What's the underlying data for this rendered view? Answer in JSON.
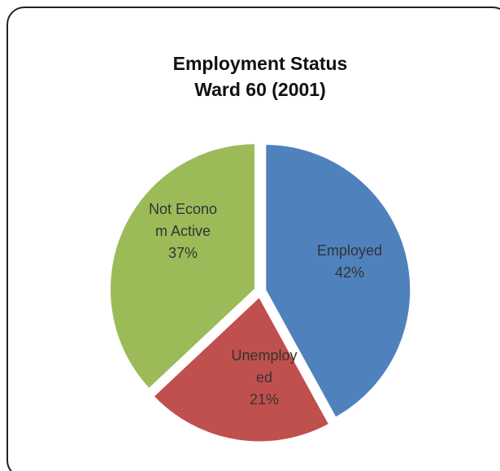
{
  "chart_data": {
    "type": "pie",
    "title": "Employment Status Ward 60 (2001)",
    "categories": [
      "Employed",
      "Unemployed",
      "Not Econom Active"
    ],
    "values": [
      42,
      21,
      37
    ],
    "value_labels": [
      "42%",
      "21%",
      "37%"
    ],
    "colors": [
      "#4f81bd",
      "#c0504d",
      "#9bbb59"
    ]
  }
}
